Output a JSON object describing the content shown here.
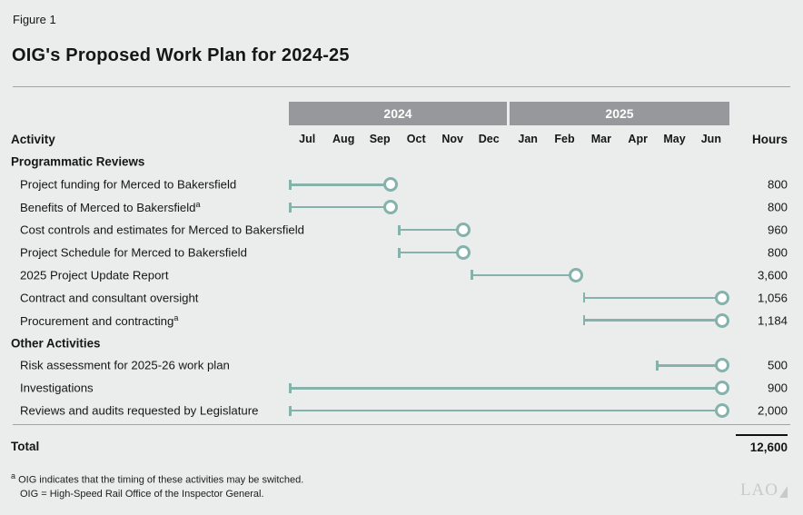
{
  "figure_label": "Figure 1",
  "title": "OIG's Proposed Work Plan for 2024-25",
  "columns": {
    "activity": "Activity",
    "hours": "Hours"
  },
  "chart_data": {
    "type": "gantt",
    "title": "OIG's Proposed Work Plan for 2024-25",
    "timeline": {
      "years": [
        {
          "label": "2024",
          "months": [
            "Jul",
            "Aug",
            "Sep",
            "Oct",
            "Nov",
            "Dec"
          ]
        },
        {
          "label": "2025",
          "months": [
            "Jan",
            "Feb",
            "Mar",
            "Apr",
            "May",
            "Jun"
          ]
        }
      ],
      "axis_note": "start/end are month offsets: 0 = start of Jul 2024, 12 = end of Jun 2025"
    },
    "rows": [
      {
        "type": "section",
        "label": "Programmatic Reviews"
      },
      {
        "type": "task",
        "label": "Project funding for Merced to Bakersfield",
        "start": 0,
        "end": 2.8,
        "hours": "800"
      },
      {
        "type": "task",
        "label": "Benefits of Merced to Bakersfield",
        "sup": "a",
        "start": 0,
        "end": 2.8,
        "hours": "800"
      },
      {
        "type": "task",
        "label": "Cost controls and estimates for Merced to Bakersfield",
        "start": 3,
        "end": 4.8,
        "hours": "960"
      },
      {
        "type": "task",
        "label": "Project Schedule for Merced to Bakersfield",
        "start": 3,
        "end": 4.8,
        "hours": "800"
      },
      {
        "type": "task",
        "label": "2025 Project Update Report",
        "start": 5,
        "end": 7.8,
        "hours": "3,600"
      },
      {
        "type": "task",
        "label": "Contract and consultant oversight",
        "start": 8,
        "end": 11.8,
        "hours": "1,056"
      },
      {
        "type": "task",
        "label": "Procurement and contracting",
        "sup": "a",
        "start": 8,
        "end": 11.8,
        "hours": "1,184"
      },
      {
        "type": "section",
        "label": "Other Activities"
      },
      {
        "type": "task",
        "label": "Risk assessment for 2025-26 work plan",
        "start": 10,
        "end": 11.8,
        "hours": "500"
      },
      {
        "type": "task",
        "label": "Investigations",
        "start": 0,
        "end": 11.8,
        "hours": "900"
      },
      {
        "type": "task",
        "label": "Reviews and audits requested by Legislature",
        "start": 0,
        "end": 11.8,
        "hours": "2,000"
      }
    ],
    "total_hours": 12600
  },
  "total": {
    "label": "Total",
    "value": "12,600"
  },
  "footnotes": {
    "marker": "a",
    "line1": "OIG indicates that the timing of these activities may be switched.",
    "line2": "OIG = High-Speed Rail Office of the Inspector General."
  },
  "logo_text": "LAO",
  "colors": {
    "bar": "#85b3ab",
    "band": "#96989b",
    "background": "#ebedec",
    "divider": "#a0a2a4",
    "band_text": "#ffffff"
  }
}
